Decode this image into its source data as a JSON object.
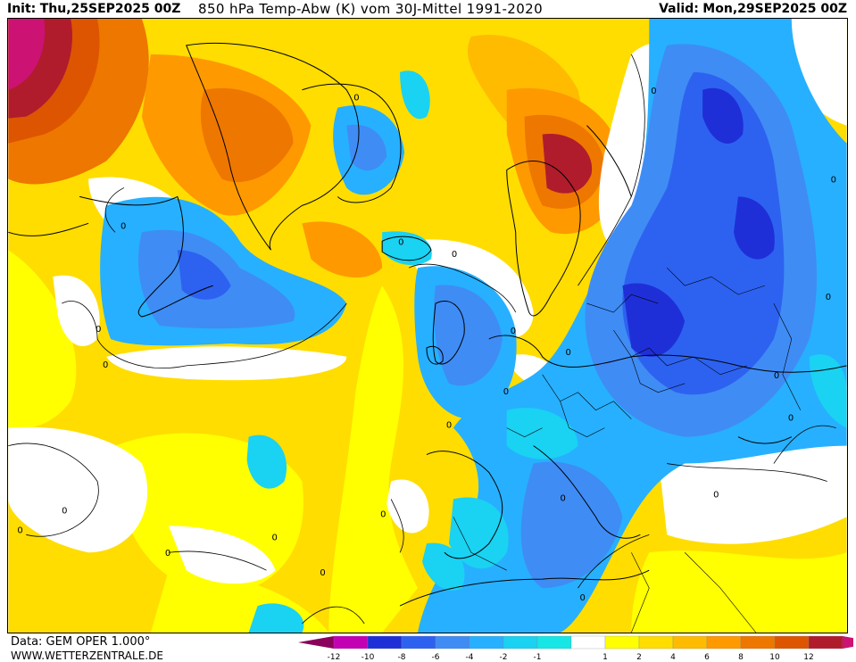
{
  "header": {
    "init_label": "Init:",
    "init_value": "Thu,25SEP2025 00Z",
    "title": "850 hPa Temp-Abw (K) vom 30J-Mittel 1991-2020",
    "valid_label": "Valid:",
    "valid_value": "Mon,29SEP2025 00Z"
  },
  "footer": {
    "data_source": "Data: GEM OPER 1.000°",
    "website": "WWW.WETTERZENTRALE.DE"
  },
  "map": {
    "contour_labels": [
      "0",
      "0",
      "0",
      "0",
      "0",
      "0",
      "0",
      "0",
      "0",
      "0",
      "0",
      "0",
      "0",
      "0",
      "0",
      "0",
      "0",
      "0",
      "0",
      "0",
      "0",
      "0",
      "0",
      "0"
    ]
  },
  "legend": {
    "ticks": [
      "-12",
      "-10",
      "-8",
      "-6",
      "-4",
      "-2",
      "-1",
      "1",
      "2",
      "4",
      "6",
      "8",
      "10",
      "12"
    ],
    "colors": [
      "#8b005a",
      "#c400b4",
      "#1f2fd8",
      "#2d62f0",
      "#3f8cf5",
      "#27b0ff",
      "#1ad2f2",
      "#16e6e6",
      "#ffffff",
      "#ffff00",
      "#ffdd00",
      "#ffbb00",
      "#ff9900",
      "#ee7700",
      "#dd5500",
      "#b01c2c",
      "#cc1272"
    ]
  }
}
